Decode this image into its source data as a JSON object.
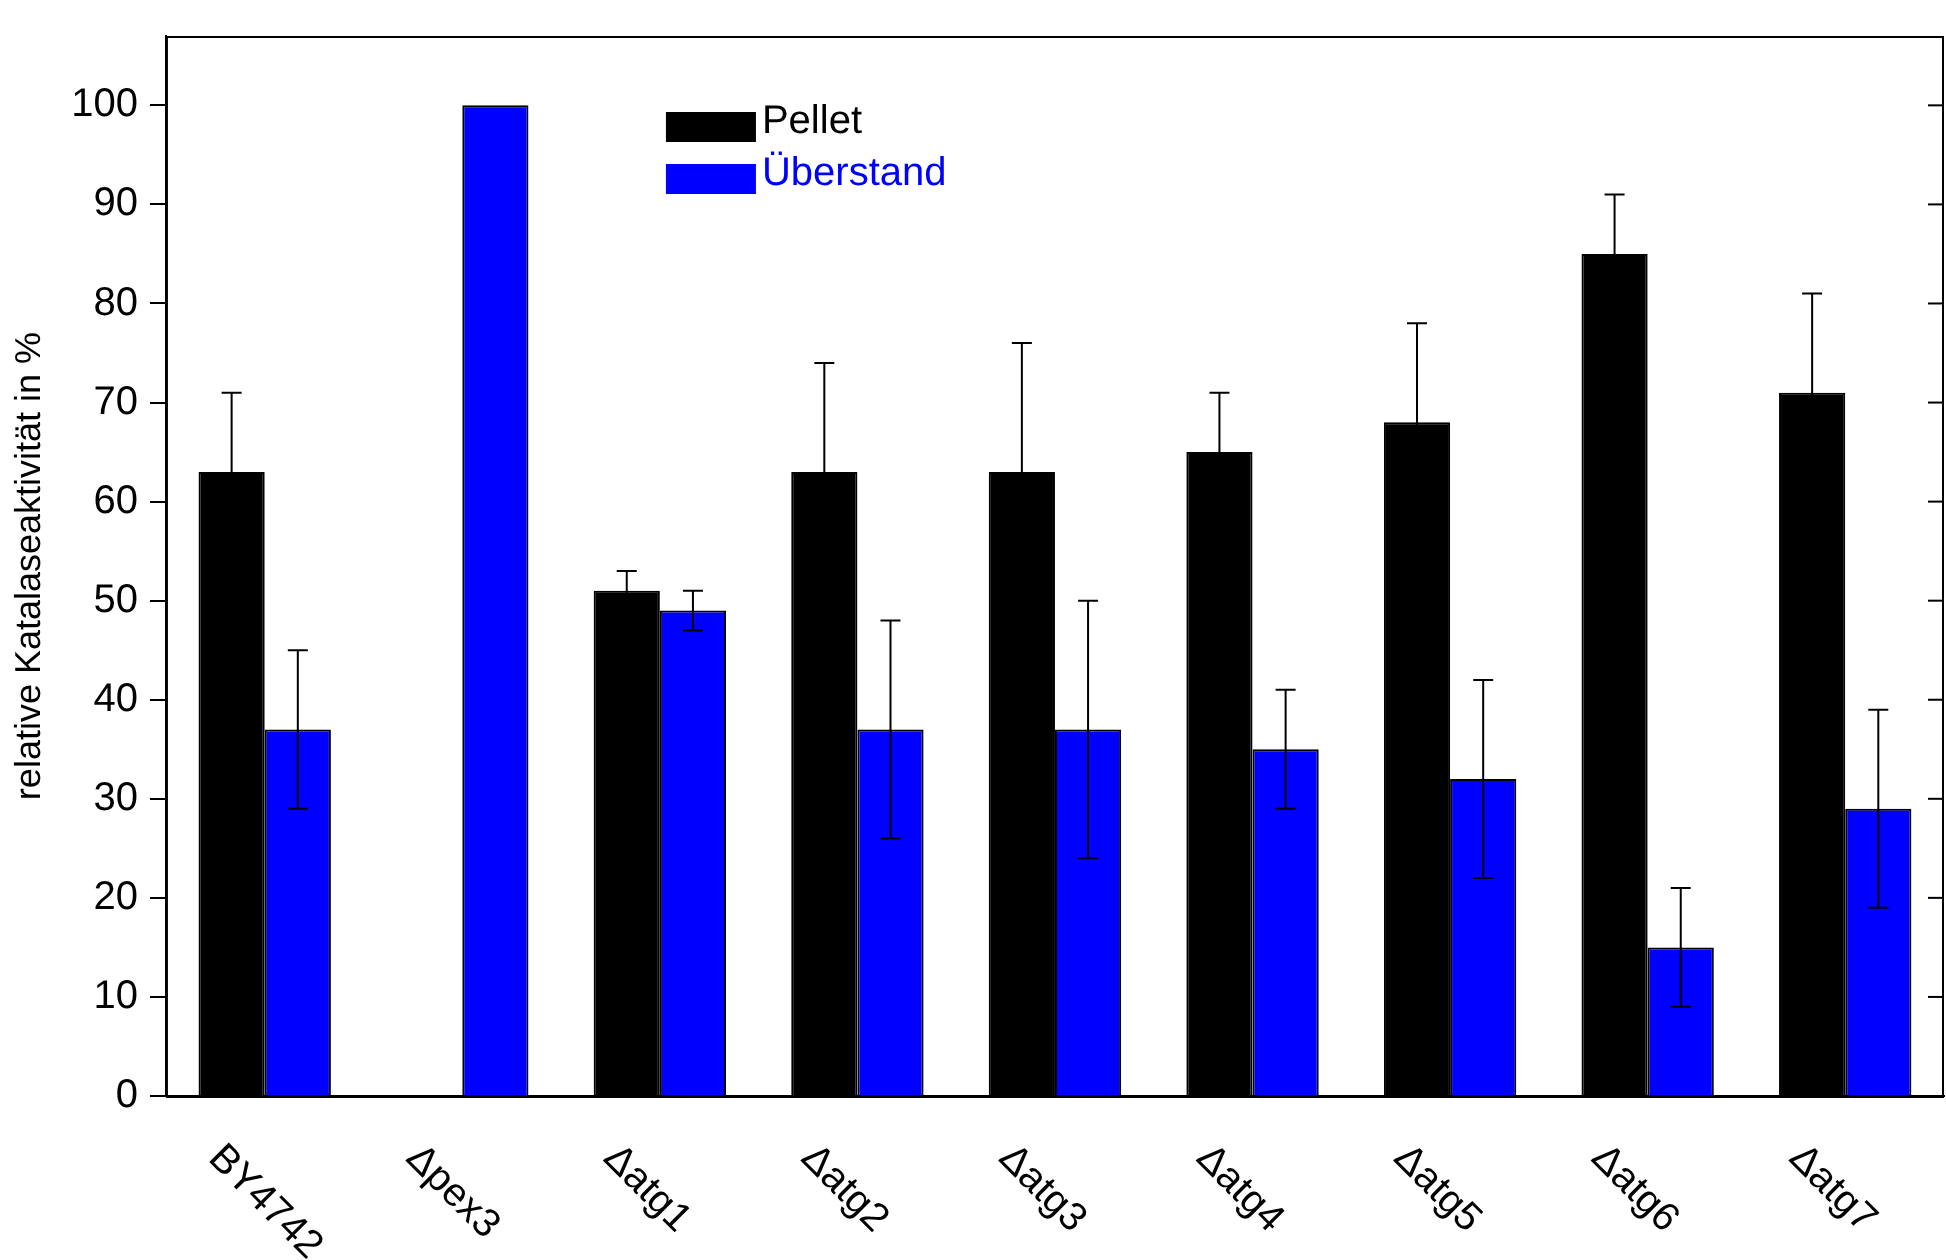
{
  "chart_data": {
    "type": "bar",
    "ylabel": "relative Katalaseaktivität in %",
    "categories": [
      "BY4742",
      "Δpex3",
      "Δatg1",
      "Δatg2",
      "Δatg3",
      "Δatg4",
      "Δatg5",
      "Δatg6",
      "Δatg7"
    ],
    "series": [
      {
        "name": "Pellet",
        "color": "#000000",
        "values": [
          63,
          0,
          51,
          63,
          63,
          65,
          68,
          85,
          71
        ],
        "errors": [
          8,
          null,
          2,
          11,
          13,
          6,
          10,
          6,
          10
        ]
      },
      {
        "name": "Überstand",
        "color": "#0000ff",
        "values": [
          37,
          100,
          49,
          37,
          37,
          35,
          32,
          15,
          29
        ],
        "errors": [
          8,
          null,
          2,
          11,
          13,
          6,
          10,
          6,
          10
        ]
      }
    ],
    "ylim": [
      0,
      107
    ],
    "yticks": [
      0,
      10,
      20,
      30,
      40,
      50,
      60,
      70,
      80,
      90,
      100
    ],
    "grid": false,
    "legend": "top"
  }
}
